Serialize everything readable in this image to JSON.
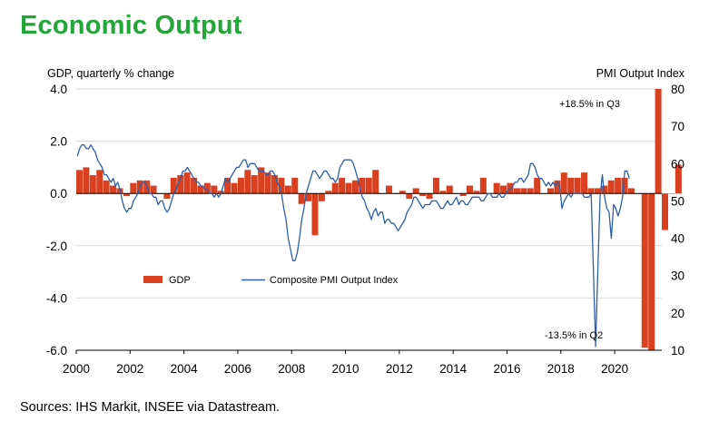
{
  "page": {
    "title": "Economic Output",
    "source": "Sources: IHS Markit, INSEE via Datastream."
  },
  "colors": {
    "title": "#22a638",
    "gdp_bar": "#d9401f",
    "pmi_line": "#2e5ea8",
    "gridline": "#d9d9d9",
    "zero_line": "#000000"
  },
  "chart_data": {
    "type": "bar+line",
    "left_axis_label": "GDP, quarterly % change",
    "right_axis_label": "PMI Output Index",
    "left_ylim": [
      -6.0,
      4.0
    ],
    "left_ticks": [
      "4.0",
      "2.0",
      "0.0",
      "-2.0",
      "-4.0",
      "-6.0"
    ],
    "left_tick_values": [
      4,
      2,
      0,
      -2,
      -4,
      -6
    ],
    "right_ylim": [
      10,
      80
    ],
    "right_ticks": [
      "80",
      "70",
      "60",
      "50",
      "40",
      "30",
      "20",
      "10"
    ],
    "right_tick_values": [
      80,
      70,
      60,
      50,
      40,
      30,
      20,
      10
    ],
    "x_range": [
      2000,
      2021.75
    ],
    "x_ticks": [
      "2000",
      "2002",
      "2004",
      "2006",
      "2008",
      "2010",
      "2012",
      "2014",
      "2016",
      "2018",
      "2020"
    ],
    "x_tick_values": [
      2000,
      2002,
      2004,
      2006,
      2008,
      2010,
      2012,
      2014,
      2016,
      2018,
      2020
    ],
    "grid": "horizontal",
    "legend": {
      "gdp": "GDP",
      "pmi": "Composite PMI Output Index",
      "placement": "lower-middle"
    },
    "annotations": {
      "q3": "+18.5% in Q3",
      "q2": "-13.5% in Q2"
    },
    "gdp_series": {
      "name": "GDP",
      "start": "2000 Q1",
      "values": [
        0.9,
        1.0,
        0.7,
        0.9,
        0.5,
        0.3,
        0.2,
        -0.1,
        0.4,
        0.5,
        0.5,
        0.3,
        0.0,
        -0.2,
        0.6,
        0.7,
        0.8,
        0.6,
        0.3,
        0.4,
        0.3,
        0.1,
        0.6,
        0.4,
        0.6,
        0.9,
        0.7,
        1.0,
        0.8,
        0.7,
        0.6,
        0.3,
        0.6,
        -0.4,
        -0.3,
        -1.6,
        -0.3,
        0.1,
        0.4,
        0.6,
        0.4,
        0.5,
        0.6,
        0.6,
        0.9,
        0.0,
        0.3,
        0.0,
        0.1,
        -0.2,
        0.2,
        -0.1,
        -0.2,
        0.6,
        0.1,
        0.3,
        0.0,
        -0.1,
        0.3,
        0.1,
        0.6,
        0.0,
        0.4,
        0.3,
        0.4,
        0.2,
        0.2,
        0.2,
        0.6,
        0.0,
        0.2,
        0.5,
        0.8,
        0.6,
        0.6,
        0.8,
        0.2,
        0.2,
        0.3,
        0.5,
        0.6,
        0.6,
        0.2,
        0.0,
        -5.9,
        -13.5,
        18.5,
        -1.4,
        0.0,
        1.1
      ]
    },
    "pmi_series": {
      "name": "Composite PMI Output Index",
      "start": "2000-01",
      "frequency": "monthly",
      "values": [
        62,
        64,
        65,
        65,
        64,
        64,
        65,
        64,
        63,
        61,
        60,
        59,
        57,
        57,
        56,
        55,
        56,
        54,
        55,
        53,
        50,
        48,
        47,
        48,
        48,
        50,
        51,
        52,
        54,
        55,
        55,
        54,
        52,
        52,
        51,
        51,
        49,
        50,
        50,
        48,
        47,
        48,
        50,
        52,
        53,
        55,
        56,
        58,
        58,
        59,
        58,
        57,
        56,
        55,
        55,
        54,
        54,
        53,
        53,
        52,
        52,
        51,
        52,
        51,
        52,
        54,
        56,
        55,
        56,
        57,
        58,
        59,
        59,
        60,
        61,
        61,
        59,
        60,
        60,
        60,
        59,
        58,
        58,
        58,
        57,
        57,
        58,
        58,
        57,
        55,
        54,
        52,
        48,
        45,
        40,
        37,
        34,
        34,
        36,
        40,
        45,
        48,
        52,
        54,
        56,
        58,
        58,
        57,
        56,
        57,
        58,
        58,
        57,
        56,
        56,
        55,
        56,
        59,
        60,
        61,
        61,
        61,
        61,
        60,
        58,
        56,
        53,
        51,
        50,
        48,
        47,
        45,
        47,
        48,
        46,
        47,
        47,
        44,
        45,
        45,
        44,
        44,
        43,
        42,
        43,
        44,
        45,
        47,
        48,
        49,
        51,
        51,
        50,
        49,
        48,
        49,
        49,
        49,
        50,
        50,
        50,
        49,
        48,
        48,
        49,
        50,
        49,
        49,
        50,
        51,
        49,
        50,
        50,
        49,
        49,
        50,
        51,
        51,
        51,
        51,
        50,
        50,
        51,
        52,
        52,
        51,
        51,
        51,
        52,
        51,
        51,
        52,
        53,
        53,
        54,
        55,
        55,
        56,
        56,
        55,
        56,
        57,
        60,
        60,
        59,
        57,
        56,
        56,
        55,
        54,
        55,
        54,
        55,
        54,
        55,
        54,
        48,
        50,
        51,
        52,
        51,
        52,
        52,
        52,
        52,
        52,
        51,
        51,
        51,
        52,
        32,
        11,
        32,
        51,
        57,
        51,
        48,
        47,
        40,
        49,
        48,
        46,
        48,
        51,
        58,
        58,
        56
      ]
    }
  }
}
